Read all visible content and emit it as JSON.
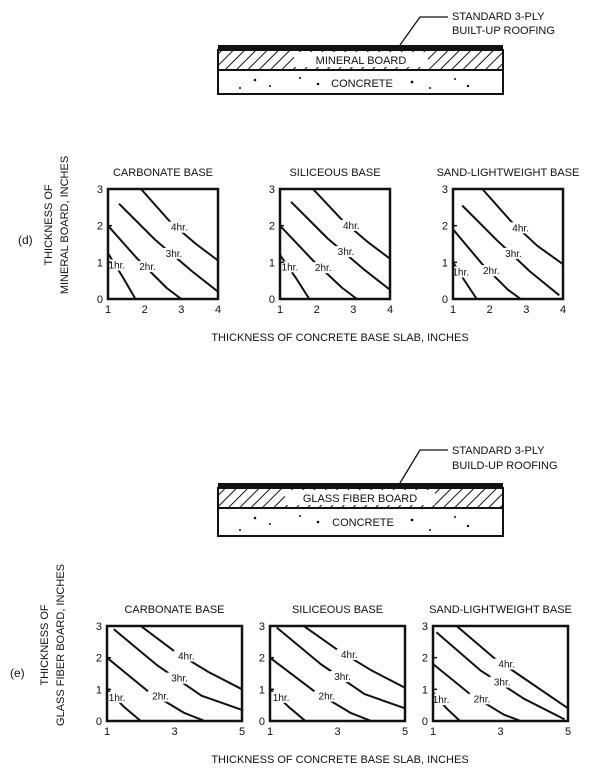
{
  "section_d": {
    "label": "(d)",
    "roof_label": "STANDARD 3-PLY",
    "roof_label_2": "BUILT-UP ROOFING",
    "board_label": "MINERAL BOARD",
    "slab_label": "CONCRETE",
    "y_axis_label_1": "THICKNESS OF",
    "y_axis_label_2": "MINERAL BOARD, INCHES",
    "x_axis_label": "THICKNESS OF CONCRETE BASE SLAB, INCHES"
  },
  "section_e": {
    "label": "(e)",
    "roof_label": "STANDARD 3-PLY",
    "roof_label_2": "BUILD-UP ROOFING",
    "board_label": "GLASS FIBER BOARD",
    "slab_label": "CONCRETE",
    "y_axis_label_1": "THICKNESS OF",
    "y_axis_label_2": "GLASS FIBER BOARD, INCHES",
    "x_axis_label": "THICKNESS OF CONCRETE BASE SLAB, INCHES"
  },
  "chart_data": [
    {
      "type": "line",
      "group": "d",
      "title": "CARBONATE BASE",
      "xlim": [
        1,
        4
      ],
      "ylim": [
        0,
        3
      ],
      "xticks": [
        1,
        2,
        3,
        4
      ],
      "yticks": [
        0,
        1,
        2,
        3
      ],
      "series": [
        {
          "name": "1hr.",
          "x": [
            1.0,
            1.4,
            1.75
          ],
          "y": [
            1.25,
            0.6,
            0.0
          ]
        },
        {
          "name": "2hr.",
          "x": [
            1.0,
            1.8,
            2.6,
            3.0
          ],
          "y": [
            2.0,
            1.1,
            0.3,
            0.0
          ]
        },
        {
          "name": "3hr.",
          "x": [
            1.3,
            2.3,
            3.3,
            4.0
          ],
          "y": [
            2.6,
            1.6,
            0.75,
            0.2
          ]
        },
        {
          "name": "4hr.",
          "x": [
            1.9,
            2.7,
            3.4,
            4.0
          ],
          "y": [
            3.0,
            2.1,
            1.5,
            1.05
          ]
        }
      ]
    },
    {
      "type": "line",
      "group": "d",
      "title": "SILICEOUS BASE",
      "xlim": [
        1,
        4
      ],
      "ylim": [
        0,
        3
      ],
      "xticks": [
        1,
        2,
        3,
        4
      ],
      "yticks": [
        0,
        1,
        2,
        3
      ],
      "series": [
        {
          "name": "1hr.",
          "x": [
            1.0,
            1.45,
            1.8
          ],
          "y": [
            1.2,
            0.55,
            0.0
          ]
        },
        {
          "name": "2hr.",
          "x": [
            1.0,
            1.9,
            2.7,
            3.1
          ],
          "y": [
            2.0,
            1.05,
            0.3,
            0.0
          ]
        },
        {
          "name": "3hr.",
          "x": [
            1.3,
            2.3,
            3.3,
            4.0
          ],
          "y": [
            2.65,
            1.65,
            0.8,
            0.25
          ]
        },
        {
          "name": "4hr.",
          "x": [
            1.9,
            2.7,
            3.4,
            4.0
          ],
          "y": [
            3.0,
            2.15,
            1.55,
            1.1
          ]
        }
      ]
    },
    {
      "type": "line",
      "group": "d",
      "title": "SAND-LIGHTWEIGHT BASE",
      "xlim": [
        1,
        4
      ],
      "ylim": [
        0,
        3
      ],
      "xticks": [
        1,
        2,
        3,
        4
      ],
      "yticks": [
        0,
        1,
        2,
        3
      ],
      "series": [
        {
          "name": "1hr.",
          "x": [
            1.0,
            1.35,
            1.65
          ],
          "y": [
            1.0,
            0.45,
            0.0
          ]
        },
        {
          "name": "2hr.",
          "x": [
            1.0,
            1.8,
            2.5,
            2.85
          ],
          "y": [
            1.9,
            0.95,
            0.25,
            0.0
          ]
        },
        {
          "name": "3hr.",
          "x": [
            1.25,
            2.2,
            3.1,
            3.9
          ],
          "y": [
            2.55,
            1.6,
            0.75,
            0.1
          ]
        },
        {
          "name": "4hr.",
          "x": [
            1.8,
            2.6,
            3.3,
            4.0
          ],
          "y": [
            3.0,
            2.1,
            1.45,
            0.95
          ]
        }
      ]
    },
    {
      "type": "line",
      "group": "e",
      "title": "CARBONATE BASE",
      "xlim": [
        1,
        5
      ],
      "ylim": [
        0,
        3
      ],
      "xticks": [
        1,
        3,
        5
      ],
      "yticks": [
        0,
        1,
        2,
        3
      ],
      "series": [
        {
          "name": "1hr.",
          "x": [
            1.0,
            1.5,
            2.0
          ],
          "y": [
            1.0,
            0.45,
            0.0
          ]
        },
        {
          "name": "2hr.",
          "x": [
            1.0,
            2.2,
            3.3,
            3.9
          ],
          "y": [
            2.0,
            0.95,
            0.25,
            0.0
          ]
        },
        {
          "name": "3hr.",
          "x": [
            1.2,
            2.5,
            3.8,
            5.0
          ],
          "y": [
            2.9,
            1.75,
            0.8,
            0.35
          ]
        },
        {
          "name": "4hr.",
          "x": [
            2.0,
            3.0,
            4.0,
            5.0
          ],
          "y": [
            3.0,
            2.2,
            1.55,
            1.0
          ]
        }
      ]
    },
    {
      "type": "line",
      "group": "e",
      "title": "SILICEOUS BASE",
      "xlim": [
        1,
        5
      ],
      "ylim": [
        0,
        3
      ],
      "xticks": [
        1,
        3,
        5
      ],
      "yticks": [
        0,
        1,
        2,
        3
      ],
      "series": [
        {
          "name": "1hr.",
          "x": [
            1.0,
            1.55,
            2.05
          ],
          "y": [
            1.0,
            0.45,
            0.0
          ]
        },
        {
          "name": "2hr.",
          "x": [
            1.0,
            2.3,
            3.4,
            4.0
          ],
          "y": [
            2.0,
            0.95,
            0.25,
            0.0
          ]
        },
        {
          "name": "3hr.",
          "x": [
            1.2,
            2.5,
            3.8,
            5.0
          ],
          "y": [
            2.95,
            1.8,
            0.85,
            0.4
          ]
        },
        {
          "name": "4hr.",
          "x": [
            2.0,
            3.0,
            4.0,
            5.0
          ],
          "y": [
            3.0,
            2.25,
            1.6,
            1.05
          ]
        }
      ]
    },
    {
      "type": "line",
      "group": "e",
      "title": "SAND-LIGHTWEIGHT BASE",
      "xlim": [
        1,
        5
      ],
      "ylim": [
        0,
        3
      ],
      "xticks": [
        1,
        3,
        5
      ],
      "yticks": [
        0,
        1,
        2,
        3
      ],
      "series": [
        {
          "name": "1hr.",
          "x": [
            1.0,
            1.4,
            1.8
          ],
          "y": [
            0.9,
            0.4,
            0.0
          ]
        },
        {
          "name": "2hr.",
          "x": [
            1.0,
            2.1,
            3.1,
            3.6
          ],
          "y": [
            1.8,
            0.85,
            0.2,
            0.0
          ]
        },
        {
          "name": "3hr.",
          "x": [
            1.1,
            2.4,
            3.7,
            4.9
          ],
          "y": [
            2.8,
            1.6,
            0.7,
            0.05
          ]
        },
        {
          "name": "4hr.",
          "x": [
            1.7,
            2.8,
            3.9,
            5.0
          ],
          "y": [
            3.0,
            2.0,
            1.2,
            0.4
          ]
        }
      ]
    }
  ]
}
